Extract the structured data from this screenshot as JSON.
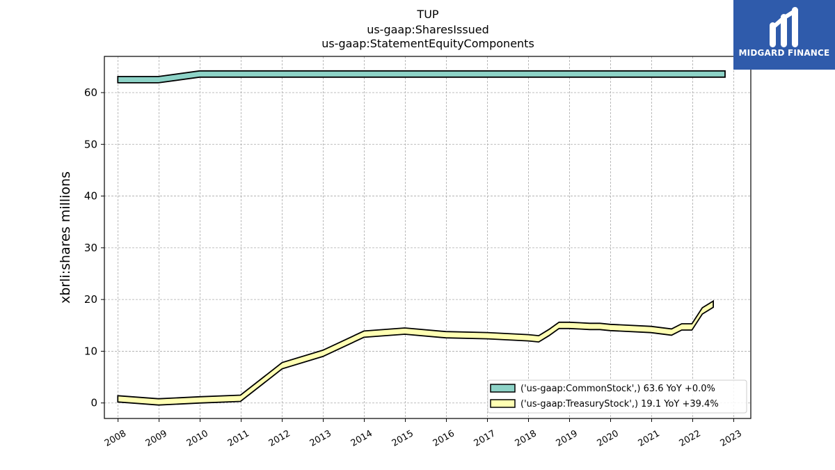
{
  "chart_data": {
    "type": "area",
    "title": [
      "TUP",
      "us-gaap:SharesIssued",
      "us-gaap:StatementEquityComponents"
    ],
    "xlabel": "",
    "ylabel": "xbrli:shares millions",
    "xlim": [
      "2007-09",
      "2023-06"
    ],
    "ylim": [
      -3,
      67
    ],
    "yticks": [
      0,
      10,
      20,
      30,
      40,
      50,
      60
    ],
    "xticks": [
      "2008",
      "2009",
      "2010",
      "2011",
      "2012",
      "2013",
      "2014",
      "2015",
      "2016",
      "2017",
      "2018",
      "2019",
      "2020",
      "2021",
      "2022",
      "2023"
    ],
    "grid": true,
    "legend_position": "lower-right",
    "series": [
      {
        "name": "('us-gaap:CommonStock',) 63.6 YoY +0.0%",
        "color": "#8dd3c7",
        "x": [
          "2007-12-29",
          "2008-12-27",
          "2009-12-26",
          "2010-12-25",
          "2011-12-31",
          "2012-12-29",
          "2013-12-28",
          "2014-12-27",
          "2015-12-26",
          "2016-12-31",
          "2017-12-30",
          "2018-12-29",
          "2019-12-28",
          "2020-12-26",
          "2021-12-25",
          "2022-12-31"
        ],
        "values": [
          62.5,
          62.5,
          63.6,
          63.6,
          63.6,
          63.6,
          63.6,
          63.6,
          63.6,
          63.6,
          63.6,
          63.6,
          63.6,
          63.6,
          63.6,
          63.6
        ]
      },
      {
        "name": "('us-gaap:TreasuryStock',) 19.1 YoY +39.4%",
        "color": "#ffffb3",
        "x": [
          "2007-12-29",
          "2008-12-27",
          "2009-12-26",
          "2010-12-25",
          "2011-12-31",
          "2012-12-29",
          "2013-12-28",
          "2014-12-27",
          "2015-12-26",
          "2016-12-31",
          "2017-12-30",
          "2018-03-31",
          "2018-06-30",
          "2018-09-29",
          "2018-12-29",
          "2019-03-30",
          "2019-06-29",
          "2019-09-28",
          "2019-12-28",
          "2020-12-26",
          "2021-06-26",
          "2021-09-25",
          "2021-12-25",
          "2022-03-26",
          "2022-07-02"
        ],
        "values": [
          0.8,
          0.2,
          0.6,
          0.9,
          7.2,
          9.6,
          13.3,
          13.9,
          13.2,
          13.0,
          12.6,
          12.4,
          13.6,
          15.0,
          15.0,
          14.9,
          14.8,
          14.8,
          14.6,
          14.2,
          13.7,
          14.7,
          14.7,
          17.8,
          19.1
        ]
      }
    ]
  },
  "logo": {
    "text": "MIDGARD FINANCE",
    "icon": "midgard-logo-icon",
    "background": "#2f5bab"
  }
}
